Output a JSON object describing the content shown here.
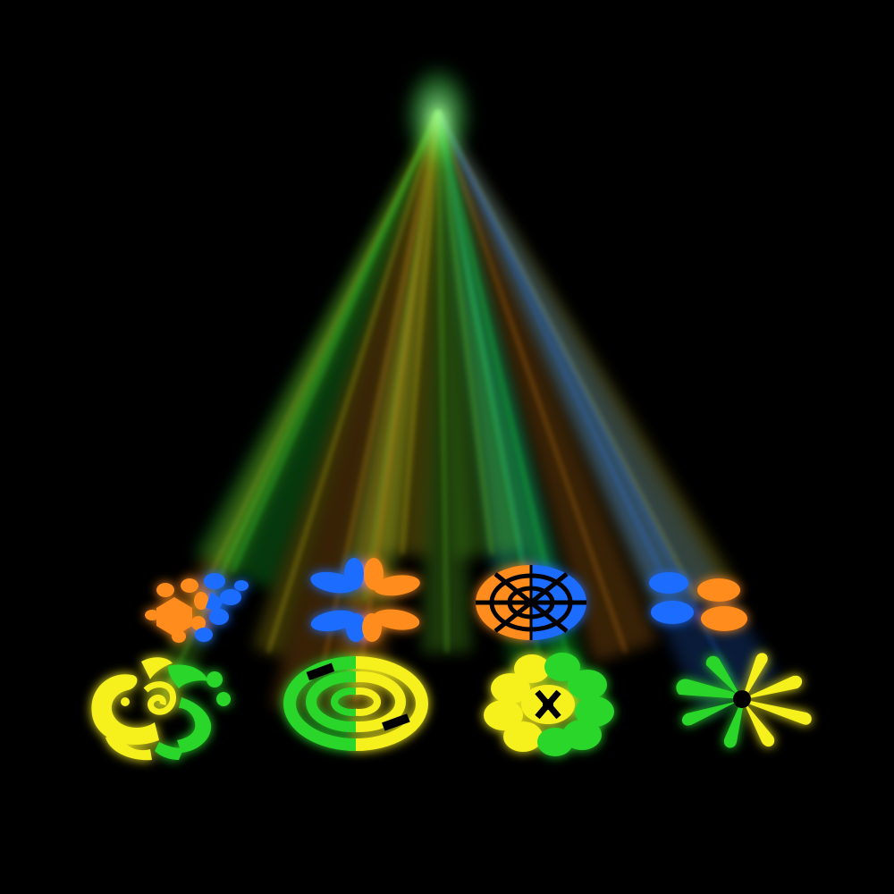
{
  "scene": {
    "background": "#000000",
    "beam_colors": [
      "#ff9a1f",
      "#1fff3a",
      "#2a7bff",
      "#ffe81f",
      "#7dff2e"
    ],
    "gobos": [
      {
        "row": "top",
        "pattern": "turtle-shell",
        "colors": [
          "#ff8c1a",
          "#1e6dff"
        ]
      },
      {
        "row": "top",
        "pattern": "petal-flower",
        "colors": [
          "#1e6dff",
          "#ff8c1a"
        ]
      },
      {
        "row": "top",
        "pattern": "segmented-disc",
        "colors": [
          "#ff8c1a",
          "#1e6dff"
        ]
      },
      {
        "row": "top",
        "pattern": "four-ovals",
        "colors": [
          "#1e6dff",
          "#ff8c1a"
        ]
      },
      {
        "row": "bottom",
        "pattern": "tribal-swirl",
        "colors": [
          "#f6f01e",
          "#2bd62b"
        ]
      },
      {
        "row": "bottom",
        "pattern": "spiral-rings",
        "colors": [
          "#2bd62b",
          "#f6f01e"
        ]
      },
      {
        "row": "bottom",
        "pattern": "scalloped-flower",
        "colors": [
          "#f6f01e",
          "#2bd62b"
        ]
      },
      {
        "row": "bottom",
        "pattern": "star-splat",
        "colors": [
          "#2bd62b",
          "#f6f01e"
        ]
      }
    ]
  }
}
